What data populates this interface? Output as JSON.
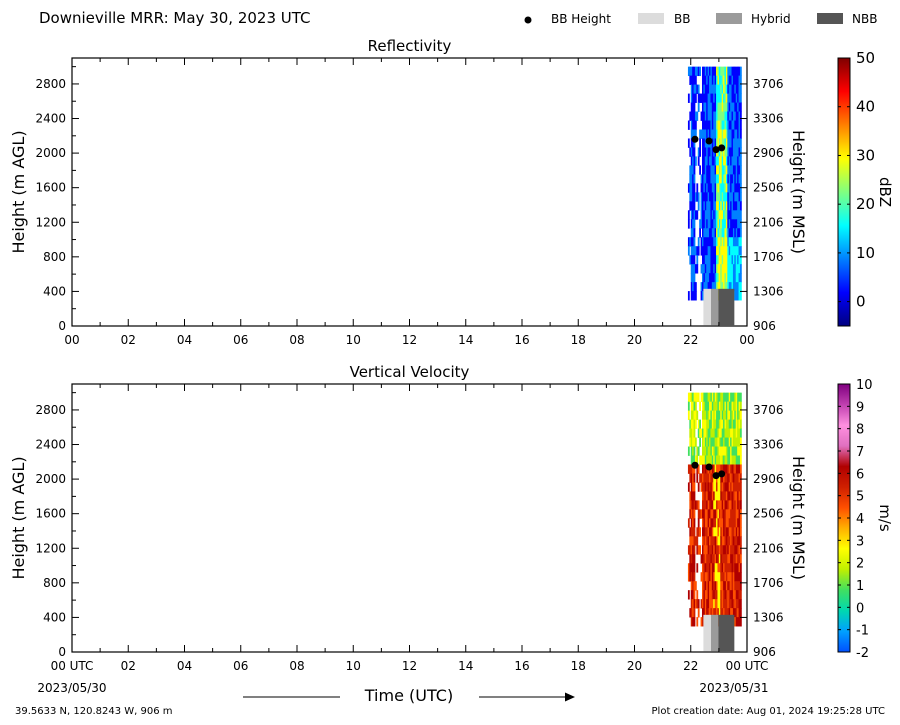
{
  "header": {
    "title": "Downieville MRR:  May 30, 2023 UTC",
    "legend": [
      {
        "label": "BB Height",
        "kind": "dot",
        "color": "#000000"
      },
      {
        "label": "BB",
        "kind": "box",
        "color": "#dcdcdc"
      },
      {
        "label": "Hybrid",
        "kind": "box",
        "color": "#9b9b9b"
      },
      {
        "label": "NBB",
        "kind": "box",
        "color": "#555555"
      }
    ]
  },
  "footer": {
    "location": "39.5633 N, 120.8243 W, 906 m",
    "creation": "Plot creation date: Aug 01, 2024 19:25:28 UTC",
    "xlabel": "Time (UTC)",
    "start_date": "2023/05/30",
    "end_date": "2023/05/31"
  },
  "chart_data": [
    {
      "type": "heatmap",
      "title": "Reflectivity",
      "ylabel": "Height (m AGL)",
      "y2label": "Height (m MSL)",
      "xlim": [
        0,
        24
      ],
      "ylim": [
        0,
        3100
      ],
      "x_ticks": [
        "00",
        "02",
        "04",
        "06",
        "08",
        "10",
        "12",
        "14",
        "16",
        "18",
        "20",
        "22",
        "00"
      ],
      "y_ticks": [
        0,
        400,
        800,
        1200,
        1600,
        2000,
        2400,
        2800
      ],
      "y2_ticks": [
        906,
        1306,
        1706,
        2106,
        2506,
        2906,
        3306,
        3706
      ],
      "colorbar": {
        "label": "dBZ",
        "min": -5,
        "max": 50,
        "ticks": [
          0,
          10,
          20,
          30,
          40,
          50
        ],
        "colors": [
          "#00007f",
          "#0000ff",
          "#0080ff",
          "#00ffff",
          "#80ff80",
          "#ffff00",
          "#ff8000",
          "#ff0000",
          "#7f0000"
        ]
      },
      "bb_height_points": [
        {
          "x": 22.15,
          "y": 2160
        },
        {
          "x": 22.65,
          "y": 2140
        },
        {
          "x": 22.9,
          "y": 2040
        },
        {
          "x": 23.1,
          "y": 2060
        }
      ],
      "bb_classification": [
        {
          "x_start": 22.45,
          "x_end": 22.72,
          "class": "BB"
        },
        {
          "x_start": 22.72,
          "x_end": 22.98,
          "class": "Hybrid"
        },
        {
          "x_start": 22.98,
          "x_end": 23.55,
          "class": "NBB"
        }
      ],
      "data_extent": {
        "x_start": 21.9,
        "x_end": 23.8,
        "y_start": 300,
        "y_end": 3000
      }
    },
    {
      "type": "heatmap",
      "title": "Vertical Velocity",
      "ylabel": "Height (m AGL)",
      "y2label": "Height (m MSL)",
      "xlim": [
        0,
        24
      ],
      "ylim": [
        0,
        3100
      ],
      "x_ticks": [
        "00 UTC",
        "02",
        "04",
        "06",
        "08",
        "10",
        "12",
        "14",
        "16",
        "18",
        "20",
        "22",
        "00 UTC"
      ],
      "y_ticks": [
        0,
        400,
        800,
        1200,
        1600,
        2000,
        2400,
        2800
      ],
      "y2_ticks": [
        906,
        1306,
        1706,
        2106,
        2506,
        2906,
        3306,
        3706
      ],
      "colorbar": {
        "label": "m/s",
        "min": -2,
        "max": 10,
        "ticks": [
          -2,
          -1,
          0,
          1,
          2,
          3,
          4,
          5,
          6,
          7,
          8,
          9,
          10
        ],
        "colors": [
          "#0050ff",
          "#00a0ff",
          "#00d8b0",
          "#40e060",
          "#c0f000",
          "#ffff00",
          "#ffb000",
          "#ff5000",
          "#d02000",
          "#b00000",
          "#e070c0",
          "#ff90e0",
          "#c040b0",
          "#800080"
        ]
      },
      "bb_height_points": [
        {
          "x": 22.15,
          "y": 2160
        },
        {
          "x": 22.65,
          "y": 2140
        },
        {
          "x": 22.9,
          "y": 2040
        },
        {
          "x": 23.1,
          "y": 2060
        }
      ],
      "bb_classification": [
        {
          "x_start": 22.45,
          "x_end": 22.72,
          "class": "BB"
        },
        {
          "x_start": 22.72,
          "x_end": 22.98,
          "class": "Hybrid"
        },
        {
          "x_start": 22.98,
          "x_end": 23.55,
          "class": "NBB"
        }
      ],
      "data_extent": {
        "x_start": 21.9,
        "x_end": 23.8,
        "y_start": 300,
        "y_end": 3000
      }
    }
  ]
}
